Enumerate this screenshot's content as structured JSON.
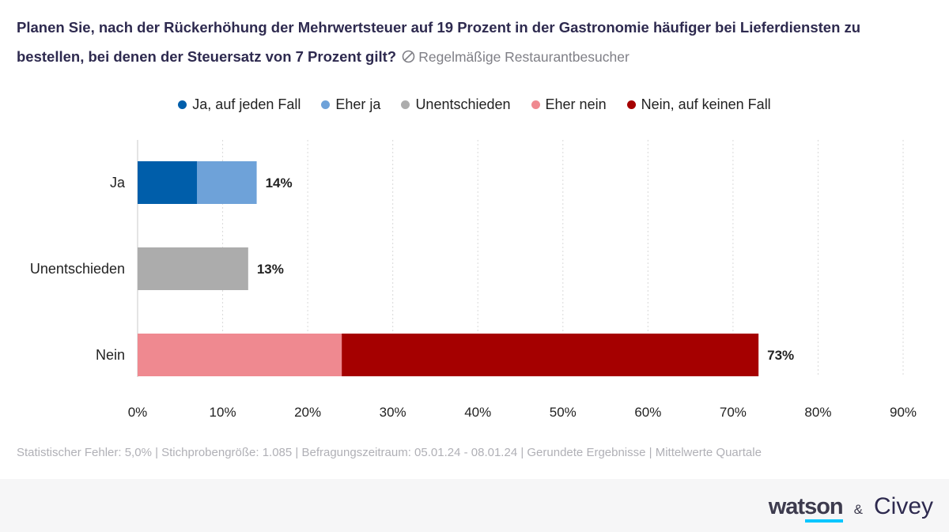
{
  "title": "Planen Sie, nach der Rückerhöhung der Mehrwertsteuer auf 19 Prozent in der Gastronomie häufiger bei Lieferdiensten zu bestellen, bei denen der Steuersatz von 7 Prozent gilt?",
  "filter_label": "Regelmäßige Restaurantbesucher",
  "footnote": "Statistischer Fehler: 5,0% | Stichprobengröße: 1.085 | Befragungszeitraum: 05.01.24 - 08.01.24 | Gerundete Ergebnisse | Mittelwerte Quartale",
  "brand": {
    "watson": "watson",
    "amp": "&",
    "civey": "Civey"
  },
  "legend": [
    {
      "label": "Ja, auf jeden Fall",
      "color": "#005eaa"
    },
    {
      "label": "Eher ja",
      "color": "#6ea2d9"
    },
    {
      "label": "Unentschieden",
      "color": "#acacac"
    },
    {
      "label": "Eher nein",
      "color": "#ef8990"
    },
    {
      "label": "Nein, auf keinen Fall",
      "color": "#a50000"
    }
  ],
  "chart_data": {
    "type": "bar",
    "orientation": "horizontal",
    "stacked": true,
    "categories": [
      "Ja",
      "Unentschieden",
      "Nein"
    ],
    "series": [
      {
        "name": "Ja, auf jeden Fall",
        "color": "#005eaa",
        "values": [
          7,
          0,
          0
        ]
      },
      {
        "name": "Eher ja",
        "color": "#6ea2d9",
        "values": [
          7,
          0,
          0
        ]
      },
      {
        "name": "Unentschieden",
        "color": "#acacac",
        "values": [
          0,
          13,
          0
        ]
      },
      {
        "name": "Eher nein",
        "color": "#ef8990",
        "values": [
          0,
          0,
          24
        ]
      },
      {
        "name": "Nein, auf keinen Fall",
        "color": "#a50000",
        "values": [
          0,
          0,
          49
        ]
      }
    ],
    "totals": [
      "14%",
      "13%",
      "73%"
    ],
    "xlim": [
      0,
      90
    ],
    "xticks": [
      0,
      10,
      20,
      30,
      40,
      50,
      60,
      70,
      80,
      90
    ],
    "xtick_labels": [
      "0%",
      "10%",
      "20%",
      "30%",
      "40%",
      "50%",
      "60%",
      "70%",
      "80%",
      "90%"
    ],
    "grid": true,
    "legend_position": "top-center"
  }
}
